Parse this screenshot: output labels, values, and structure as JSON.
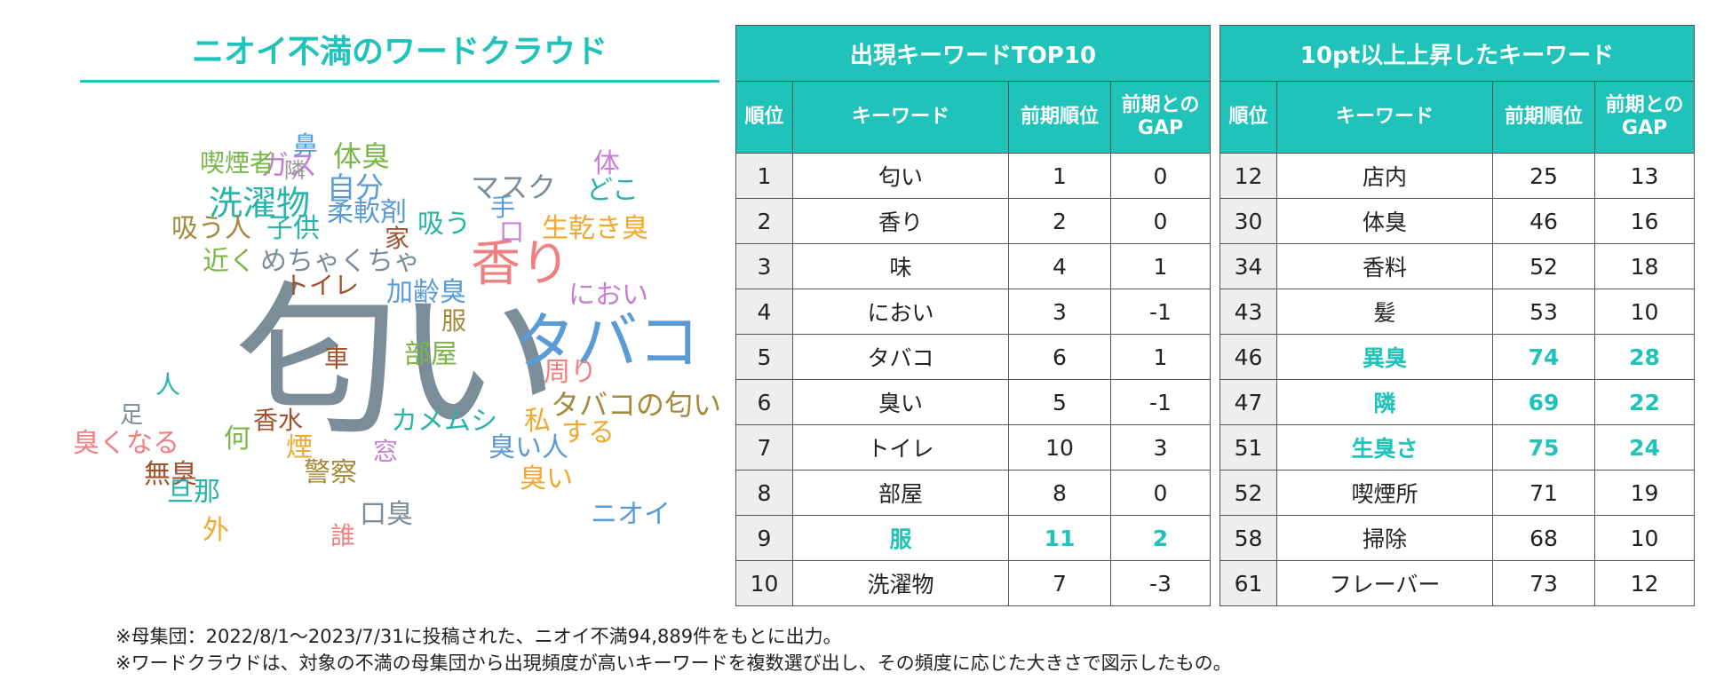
{
  "cloud": {
    "title": "ニオイ不満のワードクラウド",
    "words": [
      {
        "text": "匂い",
        "color": "#7a8d98"
      },
      {
        "text": "タバコ",
        "color": "#5b9bd5"
      },
      {
        "text": "香り",
        "color": "#f08080"
      },
      {
        "text": "洗濯物",
        "color": "#2ab3a8"
      },
      {
        "text": "ガス",
        "color": "#c77dd6"
      },
      {
        "text": "鼻",
        "color": "#5b9bd5"
      },
      {
        "text": "体臭",
        "color": "#7ab648"
      },
      {
        "text": "喫煙者",
        "color": "#7ab648"
      },
      {
        "text": "隣",
        "color": "#999999"
      },
      {
        "text": "自分",
        "color": "#5b9bd5"
      },
      {
        "text": "マスク",
        "color": "#7a8d98"
      },
      {
        "text": "体",
        "color": "#c77dd6"
      },
      {
        "text": "どこ",
        "color": "#2ab3a8"
      },
      {
        "text": "手",
        "color": "#5b9bd5"
      },
      {
        "text": "柔軟剤",
        "color": "#5b9bd5"
      },
      {
        "text": "吸う人",
        "color": "#a58a3c"
      },
      {
        "text": "子供",
        "color": "#2ab3a8"
      },
      {
        "text": "家",
        "color": "#a0522d"
      },
      {
        "text": "吸う",
        "color": "#2ab3a8"
      },
      {
        "text": "口",
        "color": "#c77dd6"
      },
      {
        "text": "生乾き臭",
        "color": "#f0a830"
      },
      {
        "text": "近く",
        "color": "#7ab648"
      },
      {
        "text": "めちゃくちゃ",
        "color": "#7a8d98"
      },
      {
        "text": "トイレ",
        "color": "#a0522d"
      },
      {
        "text": "加齢臭",
        "color": "#5b9bd5"
      },
      {
        "text": "におい",
        "color": "#c77dd6"
      },
      {
        "text": "服",
        "color": "#a58a3c"
      },
      {
        "text": "車",
        "color": "#a0522d"
      },
      {
        "text": "部屋",
        "color": "#7ab648"
      },
      {
        "text": "周り",
        "color": "#f08080"
      },
      {
        "text": "人",
        "color": "#2ab3a8"
      },
      {
        "text": "タバコの匂い",
        "color": "#a58a3c"
      },
      {
        "text": "足",
        "color": "#7a8d98"
      },
      {
        "text": "香水",
        "color": "#a0522d"
      },
      {
        "text": "カメムシ",
        "color": "#2ab3a8"
      },
      {
        "text": "私",
        "color": "#f0a830"
      },
      {
        "text": "する",
        "color": "#f0a830"
      },
      {
        "text": "臭くなる",
        "color": "#f08080"
      },
      {
        "text": "何",
        "color": "#7ab648"
      },
      {
        "text": "煙",
        "color": "#f0a830"
      },
      {
        "text": "窓",
        "color": "#c77dd6"
      },
      {
        "text": "臭い人",
        "color": "#5b9bd5"
      },
      {
        "text": "無臭",
        "color": "#a0522d"
      },
      {
        "text": "警察",
        "color": "#a58a3c"
      },
      {
        "text": "臭い",
        "color": "#f0a830"
      },
      {
        "text": "旦那",
        "color": "#2ab3a8"
      },
      {
        "text": "口臭",
        "color": "#7a8d98"
      },
      {
        "text": "ニオイ",
        "color": "#5b9bd5"
      },
      {
        "text": "外",
        "color": "#f0a830"
      },
      {
        "text": "誰",
        "color": "#f08080"
      }
    ]
  },
  "top10": {
    "title": "出現キーワードTOP10",
    "headers": {
      "rank": "順位",
      "keyword": "キーワード",
      "prev": "前期順位",
      "gap": "前期との GAP"
    },
    "rows": [
      {
        "rank": "1",
        "keyword": "匂い",
        "prev": "1",
        "gap": "0",
        "highlight": false
      },
      {
        "rank": "2",
        "keyword": "香り",
        "prev": "2",
        "gap": "0",
        "highlight": false
      },
      {
        "rank": "3",
        "keyword": "味",
        "prev": "4",
        "gap": "1",
        "highlight": false
      },
      {
        "rank": "4",
        "keyword": "におい",
        "prev": "3",
        "gap": "-1",
        "highlight": false
      },
      {
        "rank": "5",
        "keyword": "タバコ",
        "prev": "6",
        "gap": "1",
        "highlight": false
      },
      {
        "rank": "6",
        "keyword": "臭い",
        "prev": "5",
        "gap": "-1",
        "highlight": false
      },
      {
        "rank": "7",
        "keyword": "トイレ",
        "prev": "10",
        "gap": "3",
        "highlight": false
      },
      {
        "rank": "8",
        "keyword": "部屋",
        "prev": "8",
        "gap": "0",
        "highlight": false
      },
      {
        "rank": "9",
        "keyword": "服",
        "prev": "11",
        "gap": "2",
        "highlight": true
      },
      {
        "rank": "10",
        "keyword": "洗濯物",
        "prev": "7",
        "gap": "-3",
        "highlight": false
      }
    ]
  },
  "rising": {
    "title": "10pt以上上昇したキーワード",
    "headers": {
      "rank": "順位",
      "keyword": "キーワード",
      "prev": "前期順位",
      "gap": "前期との GAP"
    },
    "rows": [
      {
        "rank": "12",
        "keyword": "店内",
        "prev": "25",
        "gap": "13",
        "highlight": false
      },
      {
        "rank": "30",
        "keyword": "体臭",
        "prev": "46",
        "gap": "16",
        "highlight": false
      },
      {
        "rank": "34",
        "keyword": "香料",
        "prev": "52",
        "gap": "18",
        "highlight": false
      },
      {
        "rank": "43",
        "keyword": "髪",
        "prev": "53",
        "gap": "10",
        "highlight": false
      },
      {
        "rank": "46",
        "keyword": "異臭",
        "prev": "74",
        "gap": "28",
        "highlight": true
      },
      {
        "rank": "47",
        "keyword": "隣",
        "prev": "69",
        "gap": "22",
        "highlight": true
      },
      {
        "rank": "51",
        "keyword": "生臭さ",
        "prev": "75",
        "gap": "24",
        "highlight": true
      },
      {
        "rank": "52",
        "keyword": "喫煙所",
        "prev": "71",
        "gap": "19",
        "highlight": false
      },
      {
        "rank": "58",
        "keyword": "掃除",
        "prev": "68",
        "gap": "10",
        "highlight": false
      },
      {
        "rank": "61",
        "keyword": "フレーバー",
        "prev": "73",
        "gap": "12",
        "highlight": false
      }
    ]
  },
  "notes": [
    "※母集団：2022/8/1～2023/7/31に投稿された、ニオイ不満94,889件をもとに出力。",
    "※ワードクラウドは、対象の不満の母集団から出現頻度が高いキーワードを複数選び出し、その頻度に応じた大きさで図示したもの。"
  ],
  "colors": {
    "accent": "#1fc3b9",
    "rank_bg": "#eeeeee"
  }
}
